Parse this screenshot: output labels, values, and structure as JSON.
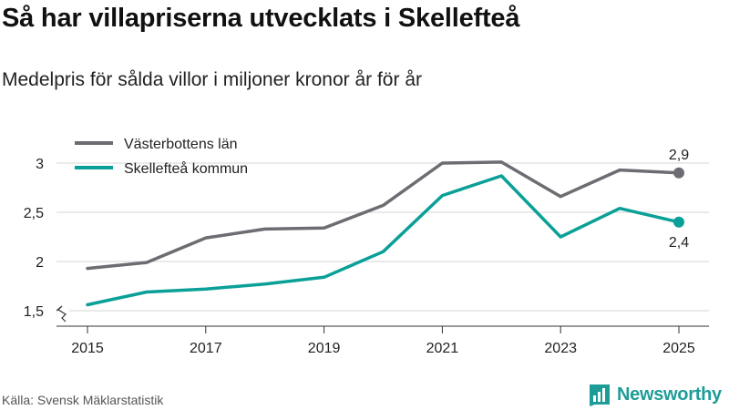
{
  "header": {
    "title": "Så har villapriserna utvecklats i Skellefteå",
    "subtitle": "Medelpris för sålda villor i miljoner kronor år för år"
  },
  "footer": {
    "source": "Källa: Svensk Mäklarstatistik",
    "brand": "Newsworthy"
  },
  "colors": {
    "series1": "#6d6c72",
    "series2": "#0aa098",
    "grid": "#d6d6d6",
    "brand": "#1e9c98"
  },
  "chart_data": {
    "type": "line",
    "title": "Så har villapriserna utvecklats i Skellefteå",
    "subtitle": "Medelpris för sålda villor i miljoner kronor år för år",
    "xlabel": "",
    "ylabel": "",
    "x": [
      2015,
      2016,
      2017,
      2018,
      2019,
      2020,
      2021,
      2022,
      2023,
      2024,
      2025
    ],
    "xticks": [
      "2015",
      "2017",
      "2019",
      "2021",
      "2023",
      "2025"
    ],
    "yticks": [
      {
        "value": 1.5,
        "label": "1,5"
      },
      {
        "value": 2,
        "label": "2"
      },
      {
        "value": 2.5,
        "label": "2,5"
      },
      {
        "value": 3,
        "label": "3"
      }
    ],
    "ylim": [
      1.3,
      3.2
    ],
    "y_axis_break": true,
    "legend_position": "top-left",
    "series": [
      {
        "name": "Västerbottens län",
        "color": "#6d6c72",
        "values": [
          1.93,
          1.99,
          2.24,
          2.33,
          2.34,
          2.57,
          3.0,
          3.01,
          2.66,
          2.93,
          2.9
        ],
        "end_label": "2,9"
      },
      {
        "name": "Skellefteå kommun",
        "color": "#0aa098",
        "values": [
          1.56,
          1.69,
          1.72,
          1.77,
          1.84,
          2.1,
          2.67,
          2.87,
          2.25,
          2.54,
          2.4
        ],
        "end_label": "2,4"
      }
    ]
  }
}
